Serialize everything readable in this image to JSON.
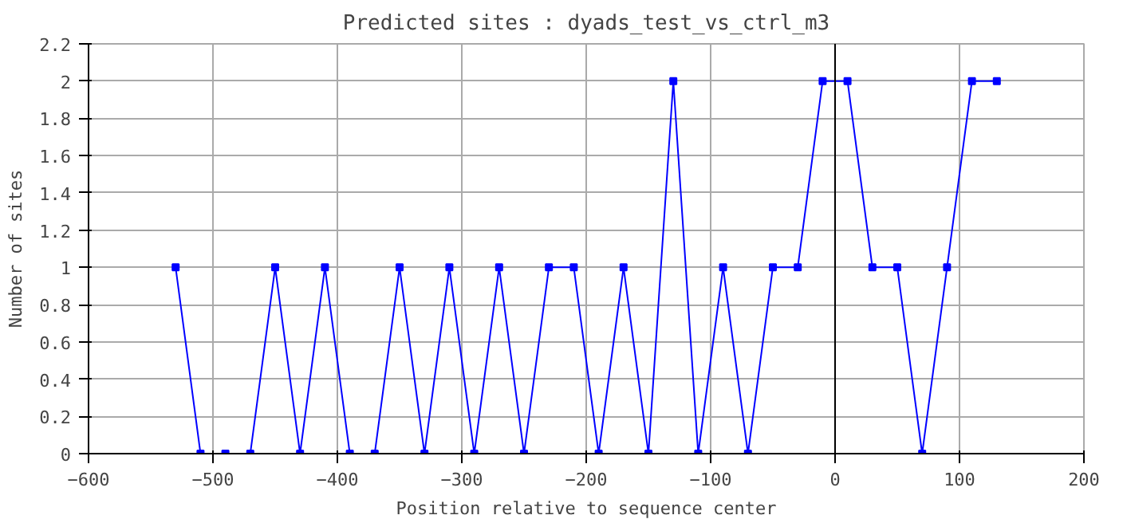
{
  "chart_data": {
    "type": "line",
    "title": "Predicted sites : dyads_test_vs_ctrl_m3",
    "xlabel": "Position relative to sequence center",
    "ylabel": "Number of sites",
    "x": [
      -530,
      -510,
      -490,
      -470,
      -450,
      -430,
      -410,
      -390,
      -370,
      -350,
      -330,
      -310,
      -290,
      -270,
      -250,
      -230,
      -210,
      -190,
      -170,
      -150,
      -130,
      -110,
      -90,
      -70,
      -50,
      -30,
      -10,
      10,
      30,
      50,
      70,
      90,
      110,
      130
    ],
    "series": [
      {
        "color": "#0000ff",
        "values": [
          1,
          0,
          0,
          0,
          1,
          0,
          1,
          0,
          0,
          1,
          0,
          1,
          0,
          1,
          0,
          1,
          1,
          0,
          1,
          0,
          2,
          0,
          1,
          0,
          1,
          1,
          2,
          2,
          1,
          1,
          0,
          1,
          2,
          2
        ]
      }
    ],
    "xlim": [
      -600,
      200
    ],
    "xticks": [
      -600,
      -500,
      -400,
      -300,
      -200,
      -100,
      0,
      100,
      200
    ],
    "ylim": [
      0,
      2.2
    ],
    "yticks": [
      0,
      0.2,
      0.4,
      0.6,
      0.8,
      1,
      1.2,
      1.4,
      1.6,
      1.8,
      2,
      2.2
    ],
    "ref_lines": [
      {
        "axis": "x",
        "value": 0,
        "color": "#000000"
      }
    ],
    "grid": true,
    "marker": "square",
    "line_style": "solid"
  }
}
